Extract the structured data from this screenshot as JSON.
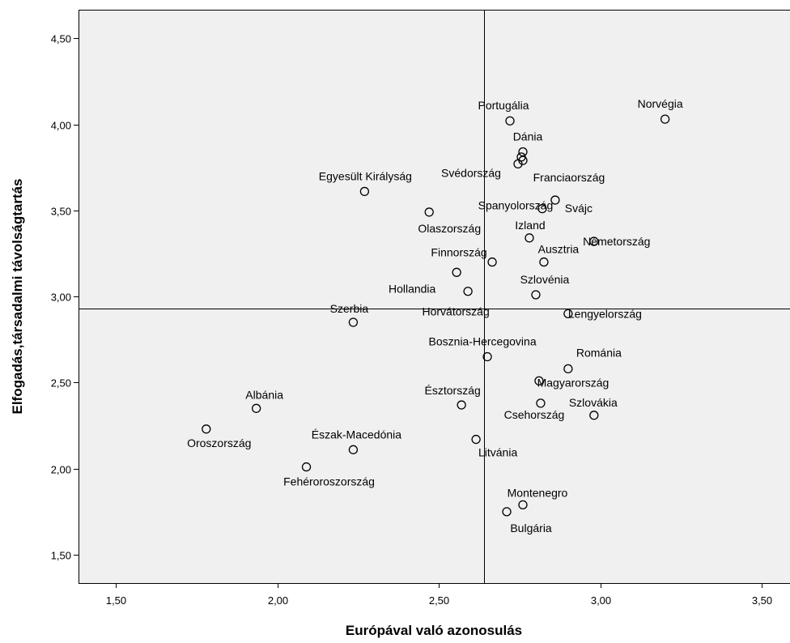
{
  "chart_data": {
    "type": "scatter",
    "title": "",
    "xlabel": "Európával való azonosulás",
    "ylabel": "Elfogadás,társadalmi távolságtartás",
    "xlim": [
      1.39,
      3.58
    ],
    "ylim": [
      1.33,
      4.67
    ],
    "xticks": [
      1.5,
      2.0,
      2.5,
      3.0,
      3.5
    ],
    "yticks": [
      1.5,
      2.0,
      2.5,
      3.0,
      3.5,
      4.0,
      4.5
    ],
    "xtick_labels": [
      "1,50",
      "2,00",
      "2,50",
      "3,00",
      "3,50"
    ],
    "ytick_labels": [
      "1,50",
      "2,00",
      "2,50",
      "3,00",
      "3,50",
      "4,00",
      "4,50"
    ],
    "reference_lines": {
      "x": 2.64,
      "y": 2.93
    },
    "grid": false,
    "legend": "none",
    "marker": "open-circle",
    "plot_background": "#f0f0f0",
    "points": [
      {
        "label": "Norvégia",
        "x": 3.2,
        "y": 4.03
      },
      {
        "label": "Portugália",
        "x": 2.72,
        "y": 4.02
      },
      {
        "label": "Dánia",
        "x": 2.76,
        "y": 3.84
      },
      {
        "label": "",
        "x": 2.755,
        "y": 3.81
      },
      {
        "label": "Svédország",
        "x": 2.745,
        "y": 3.77
      },
      {
        "label": "Franciaország",
        "x": 2.76,
        "y": 3.79
      },
      {
        "label": "Egyesült Királyság",
        "x": 2.27,
        "y": 3.61
      },
      {
        "label": "Spanyolország",
        "x": 2.82,
        "y": 3.51
      },
      {
        "label": "Svájc",
        "x": 2.86,
        "y": 3.56
      },
      {
        "label": "Olaszország",
        "x": 2.47,
        "y": 3.49
      },
      {
        "label": "Izland",
        "x": 2.78,
        "y": 3.34
      },
      {
        "label": "Németország",
        "x": 2.98,
        "y": 3.32
      },
      {
        "label": "Finnország",
        "x": 2.665,
        "y": 3.2
      },
      {
        "label": "Ausztria",
        "x": 2.825,
        "y": 3.2
      },
      {
        "label": "Hollandia",
        "x": 2.555,
        "y": 3.14
      },
      {
        "label": "Horvátország",
        "x": 2.59,
        "y": 3.03
      },
      {
        "label": "Szlovénia",
        "x": 2.8,
        "y": 3.01
      },
      {
        "label": "Lengyelország",
        "x": 2.9,
        "y": 2.9
      },
      {
        "label": "Szerbia",
        "x": 2.235,
        "y": 2.85
      },
      {
        "label": "Bosznia-Hercegovina",
        "x": 2.65,
        "y": 2.65
      },
      {
        "label": "Románia",
        "x": 2.9,
        "y": 2.58
      },
      {
        "label": "Magyarország",
        "x": 2.81,
        "y": 2.51
      },
      {
        "label": "Észtország",
        "x": 2.57,
        "y": 2.37
      },
      {
        "label": "Csehország",
        "x": 2.815,
        "y": 2.38
      },
      {
        "label": "Szlovákia",
        "x": 2.98,
        "y": 2.31
      },
      {
        "label": "Albánia",
        "x": 1.935,
        "y": 2.35
      },
      {
        "label": "Oroszország",
        "x": 1.78,
        "y": 2.23
      },
      {
        "label": "Litvánia",
        "x": 2.615,
        "y": 2.17
      },
      {
        "label": "Észak-Macedónia",
        "x": 2.235,
        "y": 2.11
      },
      {
        "label": "Fehéroroszország",
        "x": 2.09,
        "y": 2.01
      },
      {
        "label": "Montenegro",
        "x": 2.76,
        "y": 1.79
      },
      {
        "label": "Bulgária",
        "x": 2.71,
        "y": 1.75
      }
    ]
  }
}
